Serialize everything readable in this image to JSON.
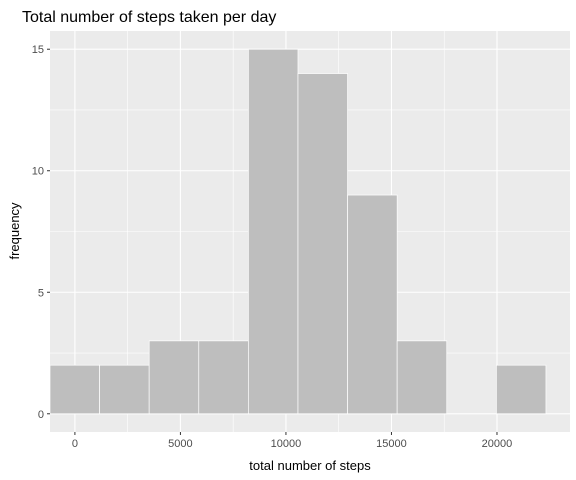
{
  "chart_data": {
    "type": "bar",
    "title": "Total number of steps taken per day",
    "xlabel": "total number of steps",
    "ylabel": "frequency",
    "xlim": [
      -1180,
      23460
    ],
    "ylim": [
      -0.75,
      15.75
    ],
    "x_ticks": [
      0,
      5000,
      10000,
      15000,
      20000
    ],
    "x_tick_labels": [
      "0",
      "5000",
      "10000",
      "15000",
      "20000"
    ],
    "y_ticks": [
      0,
      5,
      10,
      15
    ],
    "y_tick_labels": [
      "0",
      "5",
      "10",
      "15"
    ],
    "bins": [
      {
        "x0": -1180,
        "x1": 1170,
        "count": 2
      },
      {
        "x0": 1170,
        "x1": 3520,
        "count": 2
      },
      {
        "x0": 3520,
        "x1": 5870,
        "count": 3
      },
      {
        "x0": 5870,
        "x1": 8220,
        "count": 3
      },
      {
        "x0": 8220,
        "x1": 10570,
        "count": 15
      },
      {
        "x0": 10570,
        "x1": 12920,
        "count": 14
      },
      {
        "x0": 12920,
        "x1": 15270,
        "count": 9
      },
      {
        "x0": 15270,
        "x1": 17620,
        "count": 3
      },
      {
        "x0": 17620,
        "x1": 19970,
        "count": 0
      },
      {
        "x0": 19970,
        "x1": 22320,
        "count": 2
      }
    ],
    "grid": true,
    "legend": "none",
    "colors": {
      "panel": "#ebebeb",
      "grid_major": "#ffffff",
      "bar_fill": "#bebebe",
      "bar_outline": "#ffffff"
    }
  }
}
